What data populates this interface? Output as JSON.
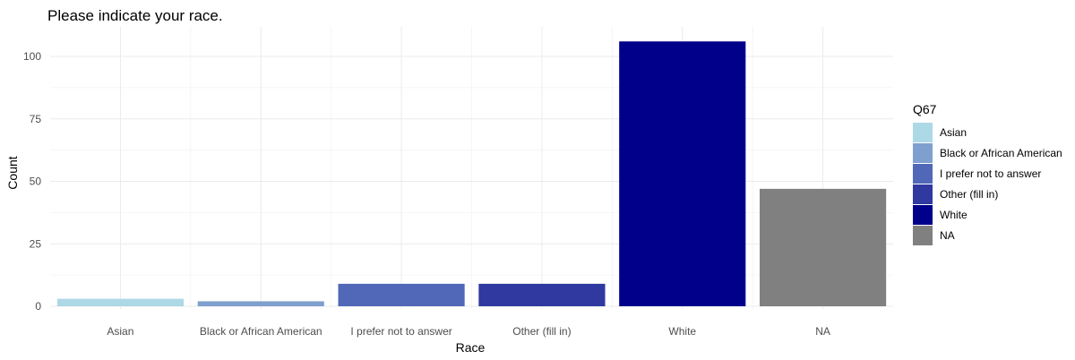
{
  "chart_data": {
    "type": "bar",
    "title": "Please indicate your race.",
    "xlabel": "Race",
    "ylabel": "Count",
    "categories": [
      "Asian",
      "Black or African American",
      "I prefer not to answer",
      "Other (fill in)",
      "White",
      "NA"
    ],
    "values": [
      3,
      2,
      9,
      9,
      106,
      47
    ],
    "colors": [
      "#ADD8E6",
      "#7F9FCF",
      "#5068B7",
      "#2F399F",
      "#00008B",
      "#808080"
    ],
    "ylim": [
      0,
      110
    ],
    "y_ticks": [
      0,
      25,
      50,
      75,
      100
    ],
    "grid": true,
    "legend": {
      "title": "Q67",
      "position": "right",
      "entries": [
        "Asian",
        "Black or African American",
        "I prefer not to answer",
        "Other (fill in)",
        "White",
        "NA"
      ]
    }
  }
}
